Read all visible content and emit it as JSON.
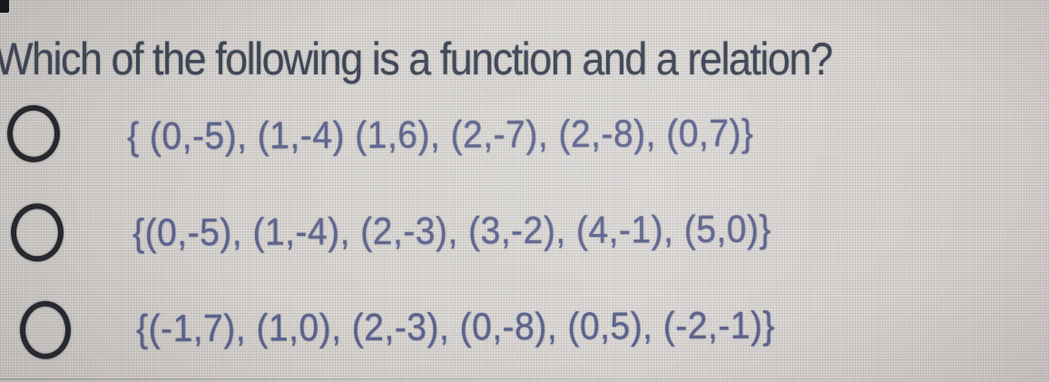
{
  "question": {
    "text": "Which of the following is a function and a relation?"
  },
  "options": [
    {
      "label": "{ (0,-5), (1,-4) (1,6), (2,-7), (2,-8), (0,7)}"
    },
    {
      "label": "{(0,-5), (1,-4), (2,-3), (3,-2), (4,-1), (5,0)}"
    },
    {
      "label": "{(-1,7), (1,0), (2,-3), (0,-8), (0,5), (-2,-1)}"
    }
  ],
  "colors": {
    "background": "#d6d3d0",
    "question_text": "#3e4656",
    "option_text": "#5b628c",
    "radio_outline": "#25282e",
    "corner_mark": "#15161a"
  }
}
